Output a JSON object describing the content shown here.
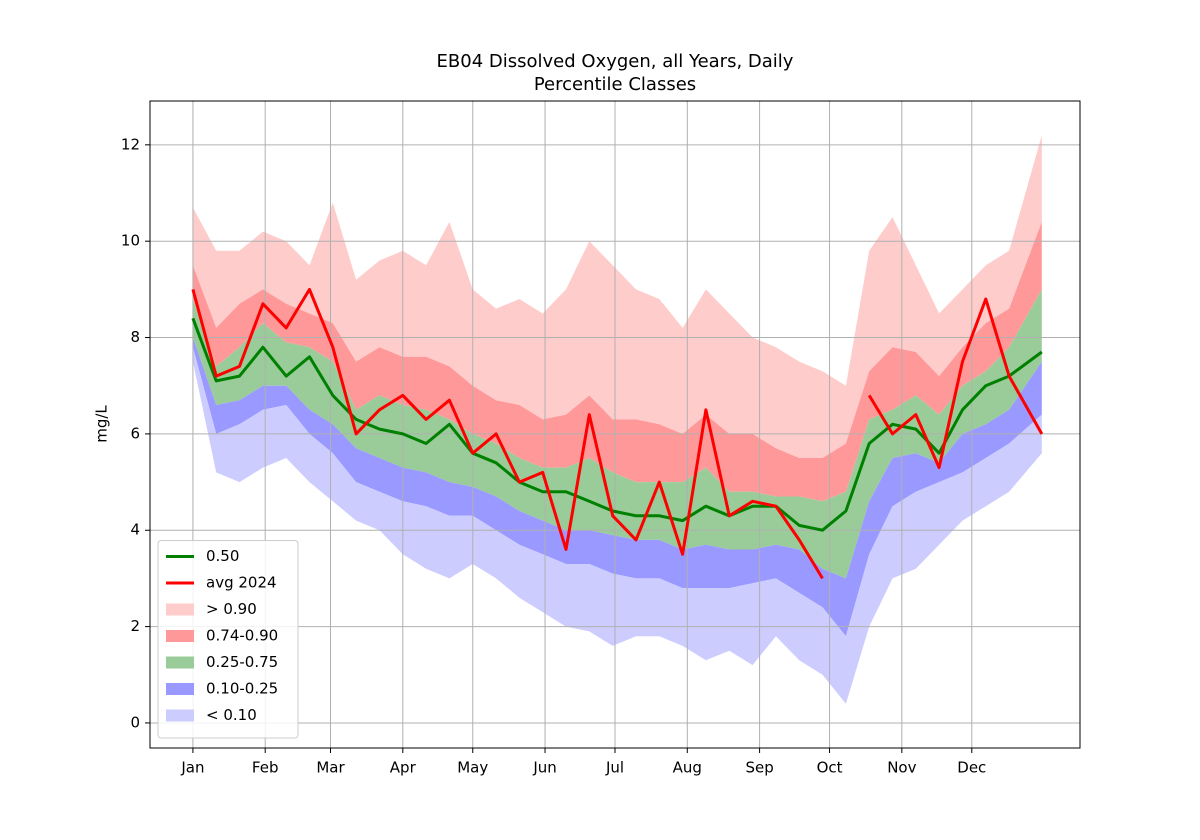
{
  "chart_data": {
    "type": "band-line",
    "title": "EB04 Dissolved Oxygen, all Years, Daily",
    "subtitle": "Percentile Classes",
    "ylabel": "mg/L",
    "x": [
      1,
      11,
      21,
      31,
      41,
      51,
      61,
      71,
      81,
      91,
      101,
      111,
      121,
      131,
      141,
      151,
      161,
      171,
      181,
      191,
      201,
      211,
      221,
      231,
      241,
      251,
      261,
      271,
      281,
      291,
      301,
      311,
      321,
      331,
      341,
      351,
      365
    ],
    "xlim": [
      -17.4,
      381.4
    ],
    "xticks": [
      {
        "value": 1,
        "label": "Jan"
      },
      {
        "value": 32,
        "label": "Feb"
      },
      {
        "value": 60,
        "label": "Mar"
      },
      {
        "value": 91,
        "label": "Apr"
      },
      {
        "value": 121,
        "label": "May"
      },
      {
        "value": 152,
        "label": "Jun"
      },
      {
        "value": 182,
        "label": "Jul"
      },
      {
        "value": 213,
        "label": "Aug"
      },
      {
        "value": 244,
        "label": "Sep"
      },
      {
        "value": 274,
        "label": "Oct"
      },
      {
        "value": 305,
        "label": "Nov"
      },
      {
        "value": 335,
        "label": "Dec"
      }
    ],
    "ylim": [
      -0.52,
      12.91
    ],
    "yticks": [
      0,
      2,
      4,
      6,
      8,
      10,
      12
    ],
    "grid": true,
    "legend": "lower left",
    "series": [
      {
        "name": "0.50",
        "color": "#008000",
        "values": [
          8.4,
          7.1,
          7.2,
          7.8,
          7.2,
          7.6,
          6.8,
          6.3,
          6.1,
          6.0,
          5.8,
          6.2,
          5.6,
          5.4,
          5.0,
          4.8,
          4.8,
          4.6,
          4.4,
          4.3,
          4.3,
          4.2,
          4.5,
          4.3,
          4.5,
          4.5,
          4.1,
          4.0,
          4.4,
          5.8,
          6.2,
          6.1,
          5.6,
          6.5,
          7.0,
          7.2,
          7.7
        ]
      },
      {
        "name": "avg 2024",
        "color": "#ff0000",
        "values": [
          9.0,
          7.2,
          7.4,
          8.7,
          8.2,
          9.0,
          7.8,
          6.0,
          6.5,
          6.8,
          6.3,
          6.7,
          5.6,
          6.0,
          5.0,
          5.2,
          3.6,
          6.4,
          4.3,
          3.8,
          5.0,
          3.5,
          6.5,
          4.3,
          4.6,
          4.5,
          3.8,
          3.0,
          null,
          6.8,
          6.0,
          6.4,
          5.3,
          7.5,
          8.8,
          7.2,
          6.0
        ]
      }
    ],
    "bands": [
      {
        "name": "> 0.90",
        "color": "#ffcccc",
        "lower": [
          9.5,
          8.2,
          8.7,
          9.0,
          8.7,
          8.5,
          8.3,
          7.5,
          7.8,
          7.6,
          7.6,
          7.4,
          7.0,
          6.7,
          6.6,
          6.3,
          6.4,
          6.8,
          6.3,
          6.3,
          6.2,
          6.0,
          6.4,
          6.0,
          6.0,
          5.7,
          5.5,
          5.5,
          5.8,
          7.3,
          7.8,
          7.7,
          7.2,
          7.8,
          8.3,
          8.6,
          10.4
        ],
        "upper": [
          10.7,
          9.8,
          9.8,
          10.2,
          10.0,
          9.5,
          10.8,
          9.2,
          9.6,
          9.8,
          9.5,
          10.4,
          9.0,
          8.6,
          8.8,
          8.5,
          9.0,
          10.0,
          9.5,
          9.0,
          8.8,
          8.2,
          9.0,
          8.5,
          8.0,
          7.8,
          7.5,
          7.3,
          7.0,
          9.8,
          10.5,
          9.5,
          8.5,
          9.0,
          9.5,
          9.8,
          12.2
        ]
      },
      {
        "name": "0.74-0.90",
        "color": "#ff9999",
        "lower": [
          8.8,
          7.4,
          7.8,
          8.3,
          7.9,
          7.8,
          7.5,
          6.5,
          6.8,
          6.6,
          6.5,
          6.3,
          6.0,
          5.8,
          5.5,
          5.3,
          5.3,
          5.5,
          5.2,
          5.0,
          5.0,
          5.0,
          5.3,
          4.8,
          4.8,
          4.7,
          4.7,
          4.6,
          4.8,
          6.3,
          6.5,
          6.8,
          6.4,
          7.0,
          7.3,
          7.8,
          9.0
        ],
        "upper": [
          9.5,
          8.2,
          8.7,
          9.0,
          8.7,
          8.5,
          8.3,
          7.5,
          7.8,
          7.6,
          7.6,
          7.4,
          7.0,
          6.7,
          6.6,
          6.3,
          6.4,
          6.8,
          6.3,
          6.3,
          6.2,
          6.0,
          6.4,
          6.0,
          6.0,
          5.7,
          5.5,
          5.5,
          5.8,
          7.3,
          7.8,
          7.7,
          7.2,
          7.8,
          8.3,
          8.6,
          10.4
        ]
      },
      {
        "name": "0.25-0.75",
        "color": "#99cc99",
        "lower": [
          8.0,
          6.6,
          6.7,
          7.0,
          7.0,
          6.5,
          6.2,
          5.7,
          5.5,
          5.3,
          5.2,
          5.0,
          4.9,
          4.7,
          4.4,
          4.2,
          4.0,
          4.0,
          3.9,
          3.8,
          3.8,
          3.6,
          3.7,
          3.6,
          3.6,
          3.7,
          3.6,
          3.2,
          3.0,
          4.6,
          5.5,
          5.6,
          5.4,
          6.0,
          6.2,
          6.5,
          7.5
        ],
        "upper": [
          8.8,
          7.4,
          7.8,
          8.3,
          7.9,
          7.8,
          7.5,
          6.5,
          6.8,
          6.6,
          6.5,
          6.3,
          6.0,
          5.8,
          5.5,
          5.3,
          5.3,
          5.5,
          5.2,
          5.0,
          5.0,
          5.0,
          5.3,
          4.8,
          4.8,
          4.7,
          4.7,
          4.6,
          4.8,
          6.3,
          6.5,
          6.8,
          6.4,
          7.0,
          7.3,
          7.8,
          9.0
        ]
      },
      {
        "name": "0.10-0.25",
        "color": "#9999ff",
        "lower": [
          7.8,
          6.0,
          6.2,
          6.5,
          6.6,
          6.0,
          5.6,
          5.0,
          4.8,
          4.6,
          4.5,
          4.3,
          4.3,
          4.0,
          3.7,
          3.5,
          3.3,
          3.3,
          3.1,
          3.0,
          3.0,
          2.8,
          2.8,
          2.8,
          2.9,
          3.0,
          2.7,
          2.4,
          1.8,
          3.5,
          4.5,
          4.8,
          5.0,
          5.2,
          5.5,
          5.8,
          6.4
        ],
        "upper": [
          8.0,
          6.6,
          6.7,
          7.0,
          7.0,
          6.5,
          6.2,
          5.7,
          5.5,
          5.3,
          5.2,
          5.0,
          4.9,
          4.7,
          4.4,
          4.2,
          4.0,
          4.0,
          3.9,
          3.8,
          3.8,
          3.6,
          3.7,
          3.6,
          3.6,
          3.7,
          3.6,
          3.2,
          3.0,
          4.6,
          5.5,
          5.6,
          5.4,
          6.0,
          6.2,
          6.5,
          7.5
        ]
      },
      {
        "name": "< 0.10",
        "color": "#ccccff",
        "lower": [
          7.5,
          5.2,
          5.0,
          5.3,
          5.5,
          5.0,
          4.6,
          4.2,
          4.0,
          3.5,
          3.2,
          3.0,
          3.3,
          3.0,
          2.6,
          2.3,
          2.0,
          1.9,
          1.6,
          1.8,
          1.8,
          1.6,
          1.3,
          1.5,
          1.2,
          1.8,
          1.3,
          1.0,
          0.4,
          2.0,
          3.0,
          3.2,
          3.7,
          4.2,
          4.5,
          4.8,
          5.6
        ],
        "upper": [
          7.8,
          6.0,
          6.2,
          6.5,
          6.6,
          6.0,
          5.6,
          5.0,
          4.8,
          4.6,
          4.5,
          4.3,
          4.3,
          4.0,
          3.7,
          3.5,
          3.3,
          3.3,
          3.1,
          3.0,
          3.0,
          2.8,
          2.8,
          2.8,
          2.9,
          3.0,
          2.7,
          2.4,
          1.8,
          3.5,
          4.5,
          4.8,
          5.0,
          5.2,
          5.5,
          5.8,
          6.4
        ]
      }
    ]
  }
}
